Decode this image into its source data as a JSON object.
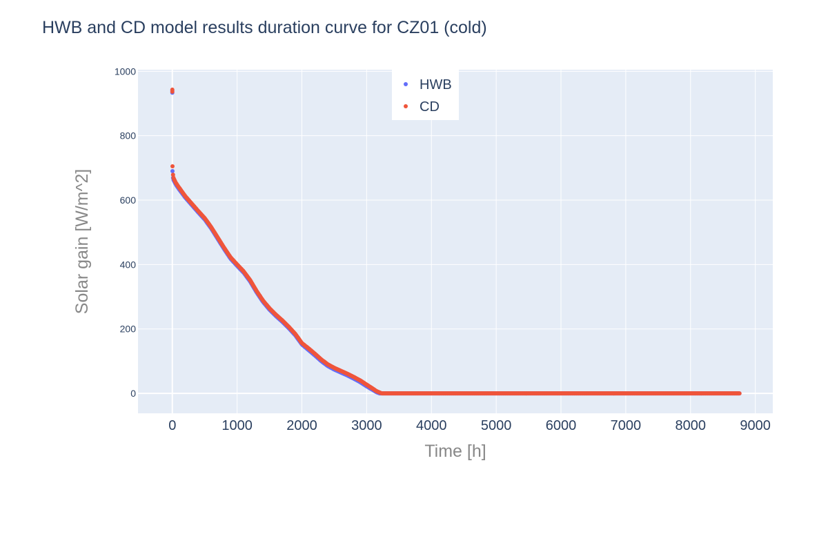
{
  "chart_data": {
    "type": "scatter",
    "title": "HWB and CD model results duration curve for CZ01 (cold)",
    "xlabel": "Time [h]",
    "ylabel": "Solar gain [W/m^2]",
    "xlim": [
      -530,
      9270
    ],
    "ylim": [
      -62,
      1005
    ],
    "xticks": [
      0,
      1000,
      2000,
      3000,
      4000,
      5000,
      6000,
      7000,
      8000,
      9000
    ],
    "xtick_labels": [
      "0",
      "1000",
      "2000",
      "3000",
      "4000",
      "5000",
      "6000",
      "7000",
      "8000",
      "9000"
    ],
    "yticks": [
      0,
      200,
      400,
      600,
      800,
      1000
    ],
    "ytick_labels": [
      "0",
      "200",
      "400",
      "600",
      "800",
      "1000"
    ],
    "grid": true,
    "legend_position": "top-center",
    "background_color": "#e5ecf6",
    "total_points": 8760,
    "series": [
      {
        "name": "HWB",
        "color": "#636efa",
        "curve": [
          [
            0,
            940
          ],
          [
            3,
            690
          ],
          [
            10,
            670
          ],
          [
            20,
            662
          ],
          [
            50,
            650
          ],
          [
            100,
            635
          ],
          [
            200,
            608
          ],
          [
            300,
            585
          ],
          [
            400,
            562
          ],
          [
            500,
            540
          ],
          [
            600,
            512
          ],
          [
            700,
            480
          ],
          [
            800,
            448
          ],
          [
            900,
            418
          ],
          [
            1000,
            396
          ],
          [
            1100,
            375
          ],
          [
            1200,
            348
          ],
          [
            1300,
            314
          ],
          [
            1400,
            284
          ],
          [
            1500,
            260
          ],
          [
            1600,
            240
          ],
          [
            1700,
            222
          ],
          [
            1800,
            202
          ],
          [
            1900,
            180
          ],
          [
            2000,
            152
          ],
          [
            2100,
            135
          ],
          [
            2200,
            118
          ],
          [
            2300,
            100
          ],
          [
            2400,
            85
          ],
          [
            2500,
            74
          ],
          [
            2600,
            65
          ],
          [
            2700,
            56
          ],
          [
            2800,
            46
          ],
          [
            2900,
            35
          ],
          [
            3000,
            22
          ],
          [
            3100,
            10
          ],
          [
            3150,
            4
          ],
          [
            3200,
            0
          ],
          [
            8760,
            0
          ]
        ]
      },
      {
        "name": "CD",
        "color": "#ef553b",
        "curve": [
          [
            0,
            943
          ],
          [
            3,
            705
          ],
          [
            10,
            680
          ],
          [
            20,
            668
          ],
          [
            50,
            655
          ],
          [
            100,
            640
          ],
          [
            200,
            612
          ],
          [
            300,
            589
          ],
          [
            400,
            566
          ],
          [
            500,
            544
          ],
          [
            600,
            516
          ],
          [
            700,
            484
          ],
          [
            800,
            452
          ],
          [
            900,
            422
          ],
          [
            1000,
            400
          ],
          [
            1100,
            379
          ],
          [
            1200,
            352
          ],
          [
            1300,
            318
          ],
          [
            1400,
            288
          ],
          [
            1500,
            264
          ],
          [
            1600,
            244
          ],
          [
            1700,
            226
          ],
          [
            1800,
            206
          ],
          [
            1900,
            184
          ],
          [
            2000,
            156
          ],
          [
            2100,
            140
          ],
          [
            2200,
            123
          ],
          [
            2300,
            105
          ],
          [
            2400,
            90
          ],
          [
            2500,
            79
          ],
          [
            2600,
            70
          ],
          [
            2700,
            61
          ],
          [
            2800,
            51
          ],
          [
            2900,
            40
          ],
          [
            3000,
            27
          ],
          [
            3100,
            14
          ],
          [
            3150,
            7
          ],
          [
            3230,
            0
          ],
          [
            8760,
            0
          ]
        ]
      }
    ]
  }
}
